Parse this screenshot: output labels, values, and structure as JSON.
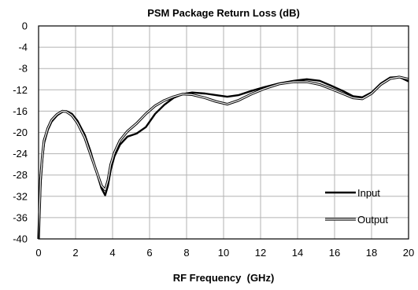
{
  "chart_data": {
    "type": "line",
    "title": "PSM Package Return Loss (dB)",
    "xlabel": "RF Frequency  (GHz)",
    "ylabel": "",
    "xlim": [
      0,
      20
    ],
    "ylim": [
      -40,
      0
    ],
    "x_ticks": [
      0,
      2,
      4,
      6,
      8,
      10,
      12,
      14,
      16,
      18,
      20
    ],
    "y_ticks": [
      0,
      -4,
      -8,
      -12,
      -16,
      -20,
      -24,
      -28,
      -32,
      -36,
      -40
    ],
    "grid": true,
    "legend_position": "bottom-right",
    "series": [
      {
        "name": "Input",
        "style": "solid-thick",
        "color": "#000000",
        "x": [
          0.0,
          0.1,
          0.2,
          0.3,
          0.5,
          0.7,
          1.0,
          1.3,
          1.5,
          1.8,
          2.1,
          2.5,
          2.8,
          3.1,
          3.4,
          3.6,
          3.75,
          3.9,
          4.1,
          4.4,
          4.8,
          5.3,
          5.8,
          6.3,
          6.8,
          7.3,
          7.8,
          8.3,
          9.0,
          9.6,
          10.2,
          10.8,
          11.5,
          12.2,
          13.0,
          13.8,
          14.5,
          15.2,
          15.8,
          16.5,
          17.0,
          17.5,
          18.0,
          18.5,
          19.0,
          19.5,
          20.0
        ],
        "y": [
          -40.0,
          -30.0,
          -25.0,
          -22.0,
          -19.5,
          -18.0,
          -16.8,
          -16.1,
          -16.0,
          -16.5,
          -17.8,
          -20.5,
          -23.5,
          -27.0,
          -30.5,
          -31.8,
          -30.0,
          -27.0,
          -24.5,
          -22.3,
          -20.8,
          -20.2,
          -19.0,
          -16.5,
          -14.8,
          -13.5,
          -12.8,
          -12.5,
          -12.7,
          -13.0,
          -13.3,
          -13.0,
          -12.2,
          -11.5,
          -10.8,
          -10.3,
          -10.0,
          -10.3,
          -11.2,
          -12.3,
          -13.2,
          -13.4,
          -12.5,
          -10.8,
          -9.7,
          -9.6,
          -10.4
        ]
      },
      {
        "name": "Output",
        "style": "double-line",
        "color": "#000000",
        "x": [
          0.0,
          0.1,
          0.2,
          0.3,
          0.5,
          0.7,
          1.0,
          1.3,
          1.5,
          1.8,
          2.1,
          2.5,
          2.8,
          3.1,
          3.4,
          3.6,
          3.75,
          3.9,
          4.1,
          4.4,
          4.8,
          5.3,
          5.8,
          6.3,
          6.8,
          7.3,
          7.8,
          8.3,
          9.0,
          9.6,
          10.2,
          10.8,
          11.5,
          12.2,
          13.0,
          13.8,
          14.5,
          15.2,
          15.8,
          16.5,
          17.0,
          17.5,
          18.0,
          18.5,
          19.0,
          19.5,
          20.0
        ],
        "y": [
          -40.0,
          -29.0,
          -24.5,
          -21.5,
          -19.2,
          -17.7,
          -16.6,
          -16.0,
          -16.1,
          -16.8,
          -18.2,
          -21.0,
          -24.0,
          -27.0,
          -30.0,
          -30.8,
          -29.0,
          -26.0,
          -23.8,
          -21.5,
          -19.8,
          -18.3,
          -16.5,
          -15.0,
          -14.0,
          -13.3,
          -12.8,
          -12.9,
          -13.5,
          -14.2,
          -14.7,
          -14.0,
          -12.8,
          -11.8,
          -10.9,
          -10.5,
          -10.5,
          -11.0,
          -11.8,
          -12.8,
          -13.5,
          -13.7,
          -12.7,
          -11.0,
          -9.9,
          -9.6,
          -10.0
        ]
      }
    ]
  }
}
